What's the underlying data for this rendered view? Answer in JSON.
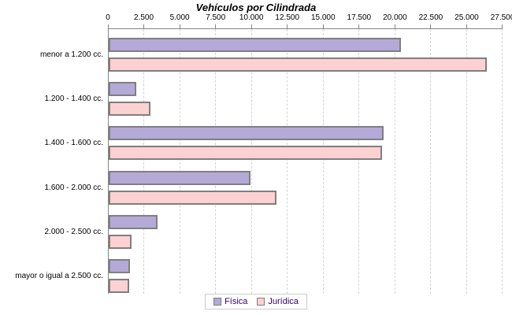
{
  "page": {
    "background": "#ffffff"
  },
  "chart_data": {
    "type": "bar",
    "orientation": "horizontal",
    "title": "Vehículos por Cilindrada",
    "categories": [
      "menor a 1.200 cc.",
      "1.200 - 1.400 cc.",
      "1.400 - 1.600 cc.",
      "1.600 - 2.000 cc.",
      "2.000 - 2.500 cc.",
      "mayor o igual a 2.500 cc."
    ],
    "series": [
      {
        "name": "Física",
        "color": "#b4aad8",
        "values": [
          20400,
          1900,
          19200,
          9900,
          3400,
          1500
        ]
      },
      {
        "name": "Jurídica",
        "color": "#fdd1d1",
        "values": [
          26400,
          2900,
          19100,
          11700,
          1600,
          1450
        ]
      }
    ],
    "x_axis": {
      "position": "top",
      "min": 0,
      "max": 27500,
      "tick_interval": 2500,
      "tick_labels": [
        "0",
        "2.500",
        "5.000",
        "7.500",
        "10.000",
        "12.500",
        "15.000",
        "17.500",
        "20.000",
        "22.500",
        "25.000",
        "27.500"
      ]
    },
    "grid": {
      "vertical_dashed": true,
      "color": "#d4d4d4"
    },
    "style": {
      "bar_border_color": "#7f7f7f",
      "axis_color": "#848484",
      "legend_text_color": "#330066",
      "legend_border_color": "#cccccc",
      "title_color": "#000000"
    },
    "legend": {
      "position": "bottom-center",
      "entries": [
        "Física",
        "Jurídica"
      ]
    }
  }
}
